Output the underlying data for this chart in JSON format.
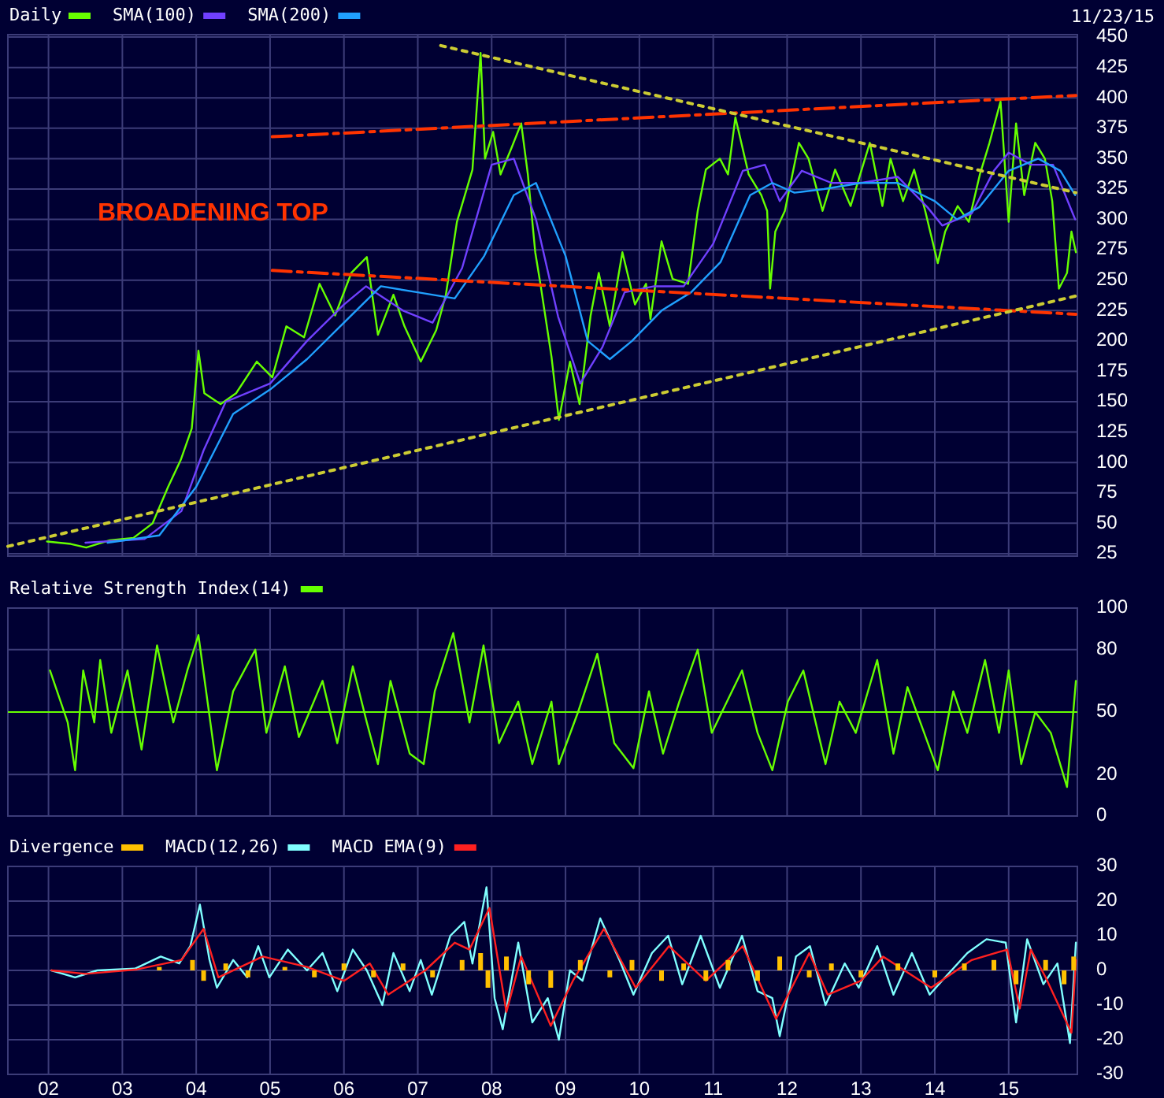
{
  "chart_data": [
    {
      "type": "line",
      "xlim": [
        2001.45,
        2015.93
      ],
      "ylim": [
        23,
        452
      ],
      "xticks": [
        {
          "value": 2002,
          "label": null
        },
        {
          "value": 2003,
          "label": null
        },
        {
          "value": 2004,
          "label": null
        },
        {
          "value": 2005,
          "label": null
        },
        {
          "value": 2006,
          "label": null
        },
        {
          "value": 2007,
          "label": null
        },
        {
          "value": 2008,
          "label": null
        },
        {
          "value": 2009,
          "label": null
        },
        {
          "value": 2010,
          "label": null
        },
        {
          "value": 2011,
          "label": null
        },
        {
          "value": 2012,
          "label": null
        },
        {
          "value": 2013,
          "label": null
        },
        {
          "value": 2014,
          "label": null
        },
        {
          "value": 2015,
          "label": null
        }
      ],
      "yticks": [
        25,
        50,
        75,
        100,
        125,
        150,
        175,
        200,
        225,
        250,
        275,
        300,
        325,
        350,
        375,
        400,
        425,
        450
      ],
      "tick_labels": "y",
      "grid": true,
      "legend": "top left",
      "annotations": [
        "BROADENING TOP",
        "11/23/15"
      ],
      "series": [
        {
          "name": "Daily",
          "color": "#66ff00",
          "x": [
            2001.98,
            2002.3,
            2002.51,
            2002.83,
            2003.15,
            2003.41,
            2003.62,
            2003.79,
            2003.94,
            2004.03,
            2004.11,
            2004.33,
            2004.54,
            2004.82,
            2005.03,
            2005.22,
            2005.46,
            2005.67,
            2005.88,
            2006.1,
            2006.31,
            2006.46,
            2006.67,
            2006.82,
            2007.04,
            2007.25,
            2007.38,
            2007.53,
            2007.74,
            2007.85,
            2007.91,
            2008.02,
            2008.12,
            2008.27,
            2008.4,
            2008.49,
            2008.59,
            2008.66,
            2008.81,
            2008.91,
            2009.06,
            2009.19,
            2009.34,
            2009.45,
            2009.6,
            2009.77,
            2009.94,
            2010.09,
            2010.15,
            2010.3,
            2010.45,
            2010.66,
            2010.79,
            2010.9,
            2011.09,
            2011.2,
            2011.3,
            2011.48,
            2011.65,
            2011.73,
            2011.77,
            2011.84,
            2011.97,
            2012.16,
            2012.29,
            2012.48,
            2012.65,
            2012.86,
            2013.12,
            2013.29,
            2013.4,
            2013.57,
            2013.72,
            2013.87,
            2014.04,
            2014.14,
            2014.31,
            2014.46,
            2014.61,
            2014.74,
            2014.89,
            2015.0,
            2015.1,
            2015.21,
            2015.36,
            2015.49,
            2015.59,
            2015.68,
            2015.79,
            2015.85,
            2015.91
          ],
          "values": [
            35,
            33,
            30,
            36,
            38,
            50,
            80,
            102,
            128,
            192,
            157,
            148,
            157,
            183,
            170,
            212,
            203,
            247,
            221,
            256,
            269,
            205,
            238,
            212,
            183,
            209,
            238,
            298,
            341,
            437,
            350,
            372,
            337,
            359,
            379,
            337,
            273,
            247,
            187,
            135,
            183,
            148,
            221,
            256,
            212,
            273,
            230,
            247,
            218,
            282,
            251,
            247,
            307,
            341,
            350,
            337,
            384,
            337,
            320,
            307,
            243,
            290,
            307,
            363,
            350,
            307,
            341,
            311,
            363,
            311,
            350,
            315,
            341,
            307,
            264,
            290,
            311,
            298,
            337,
            363,
            397,
            298,
            379,
            320,
            363,
            350,
            315,
            243,
            256,
            290,
            273
          ]
        },
        {
          "name": "SMA(100)",
          "color": "#7040ff",
          "x": [
            2002.5,
            2003.3,
            2003.8,
            2004.1,
            2004.4,
            2005.0,
            2005.5,
            2006.0,
            2006.3,
            2006.8,
            2007.2,
            2007.6,
            2008.0,
            2008.3,
            2008.6,
            2008.9,
            2009.2,
            2009.5,
            2009.8,
            2010.2,
            2010.6,
            2011.0,
            2011.4,
            2011.7,
            2011.9,
            2012.2,
            2012.6,
            2013.0,
            2013.5,
            2013.9,
            2014.1,
            2014.5,
            2014.8,
            2015.0,
            2015.3,
            2015.6,
            2015.9
          ],
          "values": [
            34,
            37,
            60,
            110,
            150,
            165,
            200,
            230,
            245,
            225,
            215,
            260,
            345,
            350,
            300,
            220,
            165,
            195,
            240,
            245,
            245,
            280,
            340,
            345,
            315,
            340,
            330,
            330,
            335,
            310,
            295,
            305,
            340,
            355,
            345,
            345,
            300
          ]
        },
        {
          "name": "SMA(200)",
          "color": "#20a0ff",
          "x": [
            2002.8,
            2003.5,
            2004.0,
            2004.5,
            2005.0,
            2005.5,
            2006.0,
            2006.5,
            2007.0,
            2007.5,
            2007.9,
            2008.3,
            2008.6,
            2009.0,
            2009.3,
            2009.6,
            2009.9,
            2010.3,
            2010.7,
            2011.1,
            2011.5,
            2011.8,
            2012.1,
            2012.5,
            2013.0,
            2013.5,
            2014.0,
            2014.3,
            2014.6,
            2015.0,
            2015.4,
            2015.7,
            2015.9
          ],
          "values": [
            34,
            40,
            80,
            140,
            160,
            185,
            215,
            245,
            240,
            235,
            270,
            320,
            330,
            270,
            200,
            185,
            200,
            225,
            240,
            265,
            320,
            330,
            322,
            325,
            330,
            330,
            315,
            300,
            310,
            340,
            350,
            340,
            320
          ]
        },
        {
          "color": "#ff3300",
          "line_style": "dashed",
          "x": [
            2005.03,
            2015.91
          ],
          "values": [
            368,
            402
          ]
        },
        {
          "color": "#ff3300",
          "line_style": "dashed",
          "x": [
            2005.03,
            2015.91
          ],
          "values": [
            258,
            222
          ]
        },
        {
          "color": "#cccc33",
          "line_style": "dotted",
          "x": [
            2007.31,
            2015.91
          ],
          "values": [
            443,
            322
          ]
        },
        {
          "color": "#cccc33",
          "line_style": "dotted",
          "x": [
            2001.45,
            2015.91
          ],
          "values": [
            31,
            237
          ]
        }
      ]
    },
    {
      "type": "line",
      "xlim": [
        2001.45,
        2015.93
      ],
      "ylim": [
        0,
        100
      ],
      "xticks": [
        {
          "value": 2002,
          "label": null
        },
        {
          "value": 2003,
          "label": null
        },
        {
          "value": 2004,
          "label": null
        },
        {
          "value": 2005,
          "label": null
        },
        {
          "value": 2006,
          "label": null
        },
        {
          "value": 2007,
          "label": null
        },
        {
          "value": 2008,
          "label": null
        },
        {
          "value": 2009,
          "label": null
        },
        {
          "value": 2010,
          "label": null
        },
        {
          "value": 2011,
          "label": null
        },
        {
          "value": 2012,
          "label": null
        },
        {
          "value": 2013,
          "label": null
        },
        {
          "value": 2014,
          "label": null
        },
        {
          "value": 2015,
          "label": null
        }
      ],
      "yticks": [
        0,
        20,
        50,
        80,
        100
      ],
      "tick_labels": "y",
      "grid": true,
      "legend": "top left",
      "ref_lines": [
        {
          "axis": "y",
          "value": 50,
          "color": "#66ff00"
        }
      ],
      "series": [
        {
          "name": "Relative Strength Index(14)",
          "color": "#66ff00",
          "x": [
            2002.02,
            2002.26,
            2002.36,
            2002.47,
            2002.62,
            2002.7,
            2002.85,
            2003.07,
            2003.26,
            2003.47,
            2003.69,
            2003.88,
            2004.03,
            2004.28,
            2004.5,
            2004.8,
            2004.95,
            2005.2,
            2005.39,
            2005.71,
            2005.91,
            2006.12,
            2006.31,
            2006.46,
            2006.63,
            2006.89,
            2007.08,
            2007.23,
            2007.48,
            2007.7,
            2007.89,
            2008.1,
            2008.36,
            2008.55,
            2008.81,
            2008.91,
            2009.17,
            2009.43,
            2009.66,
            2009.92,
            2010.13,
            2010.32,
            2010.54,
            2010.79,
            2010.98,
            2011.39,
            2011.6,
            2011.8,
            2012.01,
            2012.22,
            2012.52,
            2012.71,
            2012.93,
            2013.22,
            2013.44,
            2013.63,
            2014.04,
            2014.25,
            2014.44,
            2014.68,
            2014.87,
            2015.0,
            2015.17,
            2015.36,
            2015.57,
            2015.79,
            2015.91
          ],
          "values": [
            70,
            45,
            22,
            70,
            45,
            75,
            40,
            70,
            32,
            82,
            45,
            70,
            87,
            22,
            60,
            80,
            40,
            72,
            38,
            65,
            35,
            72,
            45,
            25,
            65,
            30,
            25,
            60,
            88,
            45,
            82,
            35,
            55,
            25,
            55,
            25,
            50,
            78,
            35,
            23,
            60,
            30,
            55,
            80,
            40,
            70,
            40,
            22,
            55,
            70,
            25,
            55,
            40,
            75,
            30,
            62,
            22,
            60,
            40,
            75,
            40,
            70,
            25,
            50,
            40,
            14,
            65
          ]
        }
      ]
    },
    {
      "type": "line",
      "xlim": [
        2001.45,
        2015.93
      ],
      "ylim": [
        -30,
        30
      ],
      "xticks": [
        {
          "value": 2002,
          "label": "02"
        },
        {
          "value": 2003,
          "label": "03"
        },
        {
          "value": 2004,
          "label": "04"
        },
        {
          "value": 2005,
          "label": "05"
        },
        {
          "value": 2006,
          "label": "06"
        },
        {
          "value": 2007,
          "label": "07"
        },
        {
          "value": 2008,
          "label": "08"
        },
        {
          "value": 2009,
          "label": "09"
        },
        {
          "value": 2010,
          "label": "10"
        },
        {
          "value": 2011,
          "label": "11"
        },
        {
          "value": 2012,
          "label": "12"
        },
        {
          "value": 2013,
          "label": "13"
        },
        {
          "value": 2014,
          "label": "14"
        },
        {
          "value": 2015,
          "label": "15"
        }
      ],
      "yticks": [
        -30,
        -20,
        -10,
        0,
        10,
        20,
        30
      ],
      "grid": true,
      "legend": "top left",
      "series": [
        {
          "name": "Divergence",
          "type": "bar",
          "color": "#ffc000",
          "x": [
            2003.5,
            2003.95,
            2004.1,
            2004.4,
            2004.7,
            2005.2,
            2005.6,
            2006.0,
            2006.4,
            2006.8,
            2007.2,
            2007.6,
            2007.85,
            2007.95,
            2008.2,
            2008.5,
            2008.8,
            2009.2,
            2009.6,
            2009.9,
            2010.3,
            2010.6,
            2010.9,
            2011.2,
            2011.6,
            2011.9,
            2012.3,
            2012.6,
            2013.0,
            2013.5,
            2014.0,
            2014.4,
            2014.8,
            2015.1,
            2015.5,
            2015.75,
            2015.88
          ],
          "values": [
            1,
            3,
            -3,
            2,
            -2,
            1,
            -2,
            2,
            -2,
            2,
            -2,
            3,
            5,
            -5,
            4,
            -4,
            -5,
            3,
            -2,
            3,
            -3,
            2,
            -3,
            3,
            -3,
            4,
            -2,
            2,
            -2,
            2,
            -2,
            2,
            3,
            -4,
            3,
            -4,
            4
          ]
        },
        {
          "name": "MACD(12,26)",
          "color": "#80ffff",
          "x": [
            2002.04,
            2002.36,
            2002.66,
            2003.17,
            2003.52,
            2003.77,
            2003.92,
            2004.05,
            2004.18,
            2004.28,
            2004.5,
            2004.69,
            2004.84,
            2004.99,
            2005.24,
            2005.5,
            2005.71,
            2005.91,
            2006.12,
            2006.31,
            2006.52,
            2006.67,
            2006.89,
            2007.04,
            2007.19,
            2007.44,
            2007.63,
            2007.74,
            2007.93,
            2008.04,
            2008.15,
            2008.36,
            2008.55,
            2008.76,
            2008.91,
            2009.06,
            2009.23,
            2009.47,
            2009.73,
            2009.92,
            2010.17,
            2010.39,
            2010.58,
            2010.83,
            2011.09,
            2011.39,
            2011.6,
            2011.8,
            2011.9,
            2012.12,
            2012.31,
            2012.52,
            2012.78,
            2012.97,
            2013.22,
            2013.44,
            2013.69,
            2013.93,
            2014.14,
            2014.44,
            2014.7,
            2014.96,
            2015.1,
            2015.25,
            2015.47,
            2015.66,
            2015.83,
            2015.91
          ],
          "values": [
            0,
            -2,
            0,
            0.5,
            4,
            2,
            7,
            19,
            3,
            -5,
            3,
            -2,
            7,
            -2,
            6,
            0,
            5,
            -6,
            6,
            0,
            -10,
            5,
            -6,
            3,
            -7,
            10,
            14,
            2,
            24,
            -8,
            -17,
            8,
            -15,
            -8,
            -20,
            0,
            -3,
            15,
            3,
            -7,
            5,
            10,
            -4,
            10,
            -5,
            10,
            -6,
            -8,
            -19,
            4,
            7,
            -10,
            2,
            -5,
            7,
            -7,
            5,
            -7,
            -2,
            5,
            9,
            8,
            -15,
            9,
            -4,
            2,
            -21,
            8
          ]
        },
        {
          "name": "MACD EMA(9)",
          "color": "#ff2020",
          "x": [
            2002.04,
            2002.5,
            2003.2,
            2003.8,
            2004.1,
            2004.3,
            2004.9,
            2005.5,
            2006.0,
            2006.35,
            2006.6,
            2007.1,
            2007.5,
            2007.7,
            2007.97,
            2008.2,
            2008.4,
            2008.8,
            2009.1,
            2009.52,
            2009.95,
            2010.4,
            2010.9,
            2011.4,
            2011.85,
            2012.3,
            2012.55,
            2013.0,
            2013.3,
            2013.95,
            2014.5,
            2014.98,
            2015.15,
            2015.3,
            2015.5,
            2015.85,
            2015.91
          ],
          "values": [
            0,
            -1,
            0.3,
            3,
            12,
            -2,
            4,
            1,
            -3,
            2,
            -7,
            0,
            8,
            6,
            18,
            -12,
            4,
            -16,
            -3,
            12,
            -5,
            7,
            -3,
            7,
            -14,
            5,
            -7,
            -3,
            4,
            -5,
            3,
            6,
            -11,
            6,
            -2,
            -18,
            3
          ]
        }
      ]
    }
  ]
}
